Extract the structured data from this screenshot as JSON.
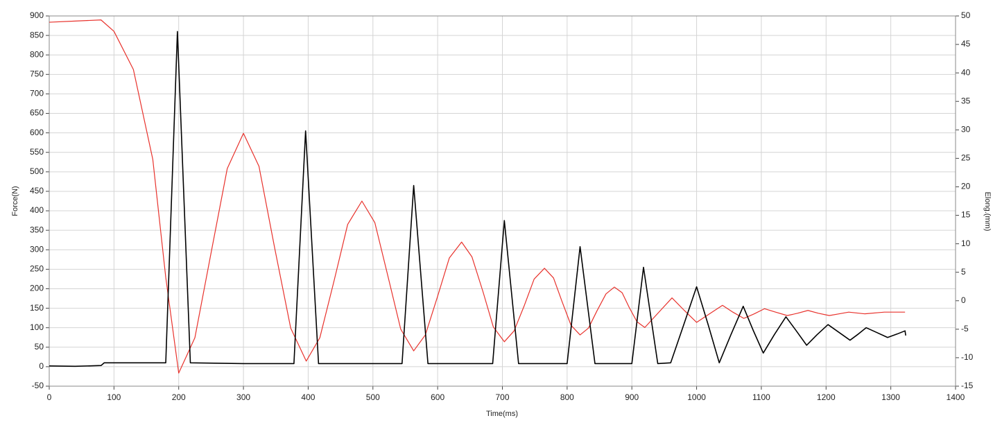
{
  "chart_data": {
    "type": "line",
    "xlabel": "Time(ms)",
    "ylabel": "Force(N)",
    "y2label": "Elong.(mm)",
    "xlim": [
      0,
      1400
    ],
    "xticks": [
      0,
      100,
      200,
      300,
      400,
      500,
      600,
      700,
      800,
      900,
      1000,
      1100,
      1200,
      1300,
      1400
    ],
    "ylim": [
      -50,
      900
    ],
    "yticks": [
      -50,
      0,
      50,
      100,
      150,
      200,
      250,
      300,
      350,
      400,
      450,
      500,
      550,
      600,
      650,
      700,
      750,
      800,
      850,
      900
    ],
    "y2lim": [
      -15,
      50
    ],
    "y2ticks": [
      -15,
      -10,
      -5,
      0,
      5,
      10,
      15,
      20,
      25,
      30,
      35,
      40,
      45,
      50
    ],
    "grid": true,
    "series": [
      {
        "color": "#000000",
        "x": [
          0,
          40,
          80,
          85,
          130,
          180,
          198,
          218,
          300,
          378,
          396,
          416,
          480,
          545,
          563,
          585,
          640,
          685,
          703,
          725,
          760,
          800,
          820,
          843,
          870,
          900,
          918,
          940,
          960,
          980,
          1000,
          1018,
          1035,
          1053,
          1072,
          1087,
          1103,
          1120,
          1138,
          1154,
          1170,
          1186,
          1203,
          1220,
          1237,
          1250,
          1262,
          1278,
          1295,
          1310,
          1322,
          1323
        ],
        "values": [
          2,
          1,
          3,
          10,
          10,
          10,
          860,
          10,
          8,
          8,
          605,
          8,
          8,
          8,
          465,
          8,
          8,
          8,
          375,
          8,
          8,
          8,
          308,
          8,
          8,
          8,
          255,
          8,
          10,
          107,
          205,
          107,
          10,
          82,
          155,
          95,
          35,
          82,
          128,
          92,
          55,
          82,
          108,
          88,
          68,
          84,
          100,
          88,
          75,
          84,
          92,
          80
        ]
      },
      {
        "color": "#e8312b",
        "axis": "y2",
        "x": [
          0,
          40,
          80,
          100,
          130,
          160,
          180,
          200,
          225,
          250,
          275,
          300,
          324,
          348,
          373,
          397,
          418,
          440,
          461,
          483,
          503,
          523,
          543,
          563,
          581,
          600,
          618,
          637,
          653,
          670,
          686,
          703,
          718,
          734,
          749,
          765,
          779,
          792,
          806,
          820,
          833,
          846,
          860,
          873,
          885,
          896,
          908,
          920,
          941,
          962,
          981,
          1000,
          1020,
          1040,
          1056,
          1073,
          1089,
          1105,
          1122,
          1140,
          1156,
          1172,
          1188,
          1205,
          1220,
          1235,
          1260,
          1290,
          1322
        ],
        "values": [
          48.9,
          49.1,
          49.3,
          47.3,
          40.6,
          24.8,
          4.1,
          -12.7,
          -6.5,
          8.4,
          23.2,
          29.4,
          23.6,
          9.4,
          -4.8,
          -10.6,
          -6.5,
          3.5,
          13.4,
          17.5,
          13.7,
          4.4,
          -5.0,
          -8.8,
          -6.0,
          0.8,
          7.5,
          10.3,
          7.7,
          1.6,
          -4.6,
          -7.2,
          -5.3,
          -0.8,
          3.8,
          5.7,
          4.0,
          -0.1,
          -4.3,
          -6.0,
          -4.8,
          -1.8,
          1.2,
          2.4,
          1.4,
          -1.2,
          -3.7,
          -4.7,
          -2.1,
          0.5,
          -1.7,
          -3.8,
          -2.3,
          -0.8,
          -2.0,
          -3.1,
          -2.3,
          -1.4,
          -2.0,
          -2.6,
          -2.2,
          -1.7,
          -2.2,
          -2.6,
          -2.3,
          -2.0,
          -2.3,
          -2.0,
          -2.0
        ]
      }
    ]
  }
}
